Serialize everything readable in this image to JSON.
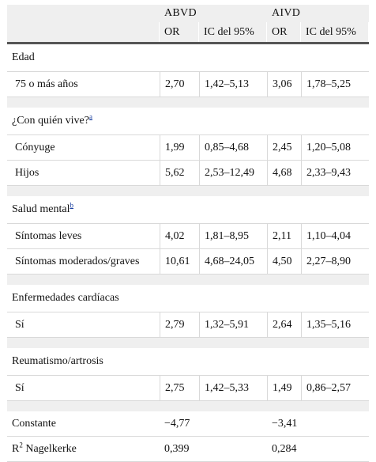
{
  "header": {
    "group_abvd": "ABVD",
    "group_aivd": "AIVD",
    "col_or": "OR",
    "col_ic": "IC del 95%"
  },
  "sections": [
    {
      "label": "Edad",
      "sup": "",
      "rows": [
        {
          "label": "75 o más años",
          "or1": "2,70",
          "ic1": "1,42–5,13",
          "or2": "3,06",
          "ic2": "1,78–5,25"
        }
      ]
    },
    {
      "label": "¿Con quién vive?",
      "sup": "a",
      "rows": [
        {
          "label": "Cónyuge",
          "or1": "1,99",
          "ic1": "0,85–4,68",
          "or2": "2,45",
          "ic2": "1,20–5,08"
        },
        {
          "label": "Hijos",
          "or1": "5,62",
          "ic1": "2,53–12,49",
          "or2": "4,68",
          "ic2": "2,33–9,43"
        }
      ]
    },
    {
      "label": "Salud mental",
      "sup": "b",
      "rows": [
        {
          "label": "Síntomas leves",
          "or1": "4,02",
          "ic1": "1,81–8,95",
          "or2": "2,11",
          "ic2": "1,10–4,04"
        },
        {
          "label": "Síntomas moderados/graves",
          "or1": "10,61",
          "ic1": "4,68–24,05",
          "or2": "4,50",
          "ic2": "2,27–8,90"
        }
      ]
    },
    {
      "label": "Enfermedades cardíacas",
      "sup": "",
      "rows": [
        {
          "label": "Sí",
          "or1": "2,79",
          "ic1": "1,32–5,91",
          "or2": "2,64",
          "ic2": "1,35–5,16"
        }
      ]
    },
    {
      "label": "Reumatismo/artrosis",
      "sup": "",
      "rows": [
        {
          "label": "Sí",
          "or1": "2,75",
          "ic1": "1,42–5,33",
          "or2": "1,49",
          "ic2": "0,86–2,57"
        }
      ]
    }
  ],
  "footer": {
    "constant_label": "Constante",
    "constant_abvd": "−4,77",
    "constant_aivd": "−3,41",
    "r2_prefix": "R",
    "r2_sup": "2",
    "r2_suffix": " Nagelkerke",
    "r2_abvd": "0,399",
    "r2_aivd": "0,284"
  }
}
